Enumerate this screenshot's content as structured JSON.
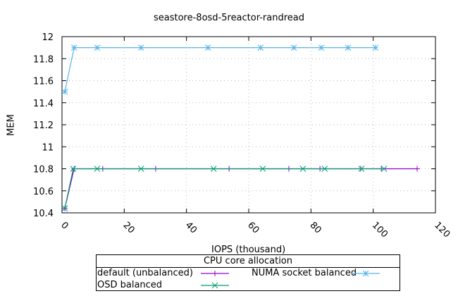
{
  "chart_data": {
    "type": "line",
    "title": "seastore-8osd-5reactor-randread",
    "xlabel": "IOPS (thousand)",
    "ylabel": "MEM",
    "xlim": [
      0,
      120
    ],
    "ylim": [
      10.4,
      12
    ],
    "xticks": [
      0,
      20,
      40,
      60,
      80,
      100,
      120
    ],
    "yticks": [
      10.4,
      10.6,
      10.8,
      11,
      11.2,
      11.4,
      11.6,
      11.8,
      12
    ],
    "ytick_labels": [
      "10.4",
      "10.6",
      "10.8",
      "11",
      "11.2",
      "11.4",
      "11.6",
      "11.8",
      "12"
    ],
    "grid": true,
    "legend_title": "CPU core allocation",
    "legend_position": "below",
    "series": [
      {
        "name": "default (unbalanced)",
        "color": "#9400d3",
        "marker": "+",
        "x": [
          0.9,
          3.9,
          13.1,
          30.1,
          53.7,
          72.9,
          82.9,
          96.0,
          102.6,
          114.1
        ],
        "y": [
          10.44,
          10.8,
          10.8,
          10.8,
          10.8,
          10.8,
          10.8,
          10.8,
          10.8,
          10.8
        ]
      },
      {
        "name": "OSD balanced",
        "color": "#009e73",
        "marker": "x",
        "x": [
          0.9,
          3.6,
          11.3,
          25.4,
          48.7,
          64.5,
          77.4,
          84.4,
          96.2,
          103.5
        ],
        "y": [
          10.44,
          10.8,
          10.8,
          10.8,
          10.8,
          10.8,
          10.8,
          10.8,
          10.8,
          10.8
        ]
      },
      {
        "name": "NUMA socket balanced",
        "color": "#56b4e9",
        "marker": "*",
        "x": [
          0.9,
          3.9,
          11.3,
          25.4,
          46.9,
          63.8,
          74.5,
          83.3,
          91.9,
          100.7
        ],
        "y": [
          11.5,
          11.9,
          11.9,
          11.9,
          11.9,
          11.9,
          11.9,
          11.9,
          11.9,
          11.9
        ]
      }
    ]
  }
}
